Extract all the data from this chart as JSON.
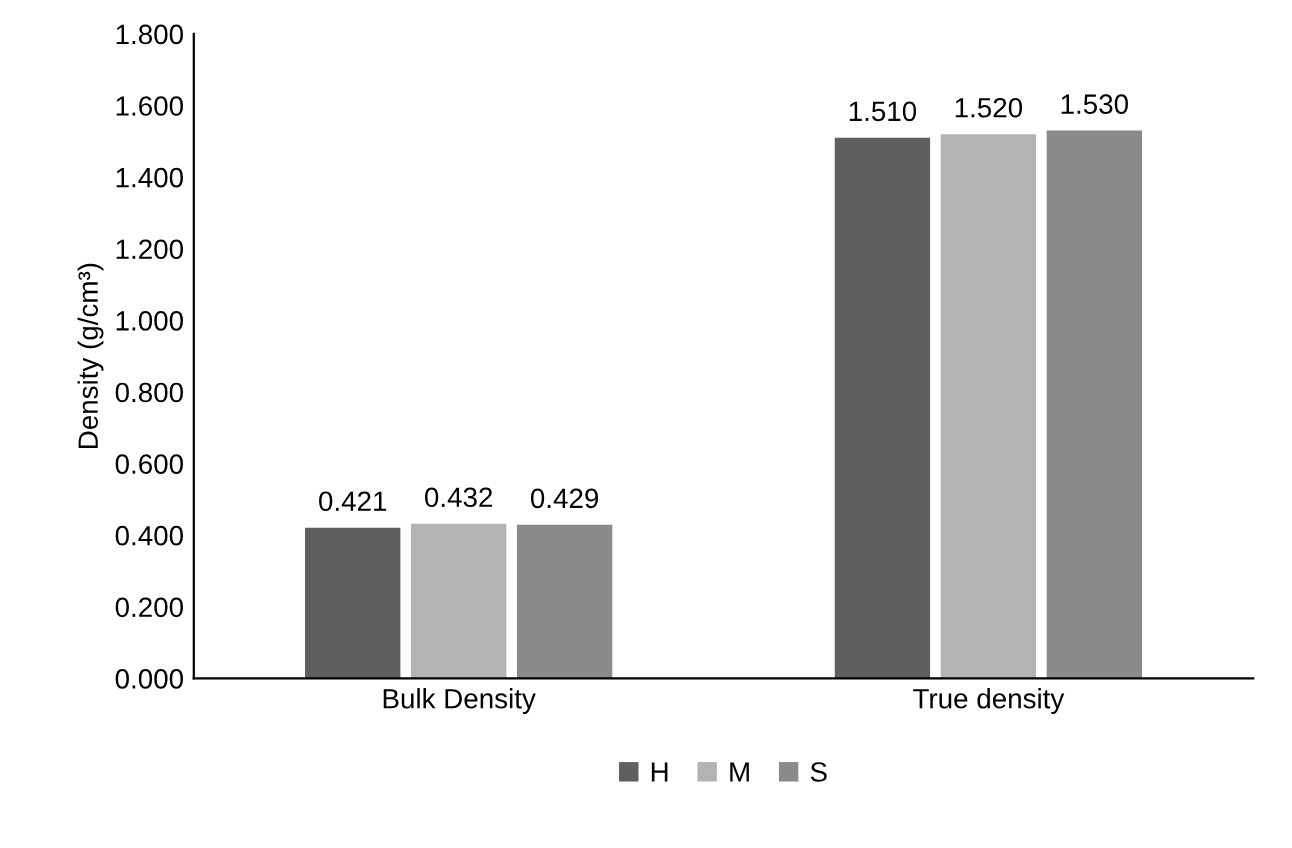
{
  "chart_data": {
    "type": "bar",
    "ylabel": "Density (g/cm³)",
    "categories": [
      "Bulk Density",
      "True density"
    ],
    "series": [
      {
        "name": "H",
        "color": "#5f5f5f",
        "values": [
          0.421,
          1.51
        ],
        "value_labels": [
          "0.421",
          "1.510"
        ]
      },
      {
        "name": "M",
        "color": "#b3b3b3",
        "values": [
          0.432,
          1.52
        ],
        "value_labels": [
          "0.432",
          "1.520"
        ]
      },
      {
        "name": "S",
        "color": "#8a8a8a",
        "values": [
          0.429,
          1.53
        ],
        "value_labels": [
          "0.429",
          "1.530"
        ]
      }
    ],
    "ylim": [
      0,
      1.8
    ],
    "yticks": [
      {
        "value": 0,
        "label": "0.000"
      },
      {
        "value": 0.2,
        "label": "0.200"
      },
      {
        "value": 0.4,
        "label": "0.400"
      },
      {
        "value": 0.6,
        "label": "0.600"
      },
      {
        "value": 0.8,
        "label": "0.800"
      },
      {
        "value": 1.0,
        "label": "1.000"
      },
      {
        "value": 1.2,
        "label": "1.200"
      },
      {
        "value": 1.4,
        "label": "1.400"
      },
      {
        "value": 1.6,
        "label": "1.600"
      },
      {
        "value": 1.8,
        "label": "1.800"
      }
    ],
    "grid": false,
    "legend": "bottom"
  }
}
